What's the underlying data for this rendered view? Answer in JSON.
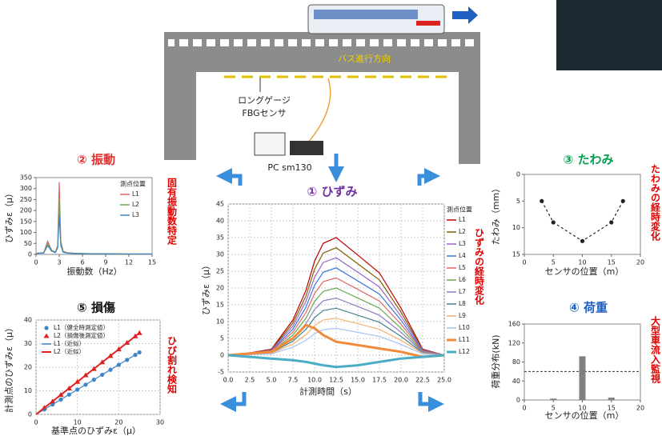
{
  "diagram": {
    "bus_direction": "バス進行方向",
    "sensor_label": [
      "ロングゲージ",
      "FBGセンサ"
    ],
    "pc_label": "PC sm130"
  },
  "chart_data": [
    {
      "type": "line",
      "title": "① ひずみ",
      "title_color": "#7030a0",
      "note": "ひずみの経時変化",
      "x_label": "計測時間（s）",
      "y_label": "ひずみε（μ）",
      "xlim": [
        0,
        25
      ],
      "ylim": [
        -5,
        45
      ],
      "xticks": [
        {
          "value": 0,
          "label": "0.0"
        },
        {
          "value": 2.5,
          "label": "2.5"
        },
        {
          "value": 5,
          "label": "5.0"
        },
        {
          "value": 7.5,
          "label": "7.5"
        },
        {
          "value": 10,
          "label": "10.0"
        },
        {
          "value": 12.5,
          "label": "12.5"
        },
        {
          "value": 15,
          "label": "15.0"
        },
        {
          "value": 17.5,
          "label": "17.5"
        },
        {
          "value": 20,
          "label": "20.0"
        },
        {
          "value": 22.5,
          "label": "22.5"
        },
        {
          "value": 25,
          "label": "25.0"
        }
      ],
      "yticks": [
        -5,
        0,
        5,
        10,
        15,
        20,
        25,
        30,
        35,
        40,
        45
      ],
      "grid": true,
      "legend": "right",
      "legend_title": "測点位置",
      "x": [
        0,
        2.5,
        5,
        7.5,
        9,
        10,
        11,
        12.5,
        15,
        17.5,
        20,
        22.5,
        25
      ],
      "series": [
        {
          "name": "L1",
          "color": "#c00000",
          "values": [
            0,
            0.7,
            1.8,
            10.5,
            19.3,
            28,
            33.3,
            35,
            29.8,
            24.5,
            14,
            1.8,
            0
          ]
        },
        {
          "name": "L2",
          "color": "#7f6000",
          "values": [
            0,
            0.6,
            1.6,
            9.6,
            17.6,
            25.6,
            30.4,
            32,
            27.2,
            22.4,
            12.8,
            1.6,
            0
          ]
        },
        {
          "name": "L3",
          "color": "#9966cc",
          "values": [
            0,
            0.6,
            1.5,
            8.7,
            16,
            23.2,
            27.6,
            29,
            24.7,
            20.3,
            11.6,
            1.5,
            0
          ]
        },
        {
          "name": "L4",
          "color": "#3c78d8",
          "values": [
            0,
            0.5,
            1.3,
            7.8,
            14.3,
            20.8,
            24.7,
            26,
            22.1,
            18.2,
            10.4,
            1.3,
            0
          ]
        },
        {
          "name": "L5",
          "color": "#e06666",
          "values": [
            0,
            0.5,
            1.2,
            6.9,
            12.7,
            18.4,
            21.9,
            23,
            19.6,
            16.1,
            9.2,
            1.2,
            0
          ]
        },
        {
          "name": "L6",
          "color": "#6aa84f",
          "values": [
            0,
            0.4,
            1,
            6,
            11,
            16,
            19,
            20,
            17,
            14,
            8,
            1,
            0
          ]
        },
        {
          "name": "L7",
          "color": "#8e7cc3",
          "values": [
            0,
            0.3,
            0.9,
            5.1,
            9.4,
            13.6,
            16.2,
            17,
            14.5,
            11.9,
            6.8,
            0.9,
            0
          ]
        },
        {
          "name": "L8",
          "color": "#45818e",
          "values": [
            0,
            0.3,
            0.7,
            4.2,
            7.7,
            11.2,
            13.3,
            14,
            11.9,
            9.8,
            5.6,
            0.7,
            0
          ]
        },
        {
          "name": "L9",
          "color": "#f6b26b",
          "values": [
            0,
            0.2,
            0.6,
            3.3,
            6.1,
            8.8,
            10.5,
            11,
            9.4,
            7.7,
            4.4,
            0.6,
            0
          ]
        },
        {
          "name": "L10",
          "color": "#a4c2f4",
          "values": [
            0,
            0.2,
            0.4,
            2.4,
            4.4,
            6.4,
            7.6,
            8,
            6.8,
            5.6,
            3.2,
            0.4,
            0
          ]
        },
        {
          "name": "L11",
          "color": "#f08a3c",
          "width": 3,
          "values": [
            0,
            0.5,
            1,
            5,
            9,
            8,
            6,
            4,
            3,
            2,
            1,
            -0.5,
            0
          ]
        },
        {
          "name": "L12",
          "color": "#4bacc6",
          "width": 3,
          "values": [
            0,
            -0.5,
            -1,
            -1.5,
            -2,
            -2.5,
            -3,
            -3.5,
            -3,
            -2,
            -1,
            -0.5,
            0
          ]
        }
      ]
    },
    {
      "type": "line",
      "title": "② 振動",
      "title_color": "#e03030",
      "note": "固有振動数特定",
      "x_label": "振動数（Hz）",
      "y_label": "ひずみε（μ）",
      "xlim": [
        0,
        15
      ],
      "ylim": [
        0,
        350
      ],
      "xticks": [
        0,
        3,
        6,
        9,
        12,
        15
      ],
      "yticks": [
        0,
        50,
        100,
        150,
        200,
        250,
        300,
        350
      ],
      "grid": false,
      "legend": "upper right",
      "legend_title": "測点位置",
      "x": [
        0,
        1,
        1.5,
        2,
        2.5,
        2.8,
        3,
        3.2,
        3.5,
        4,
        5,
        6,
        8,
        10,
        12,
        15
      ],
      "series": [
        {
          "name": "L1",
          "color": "#e06666",
          "values": [
            5,
            8,
            60,
            20,
            10,
            40,
            330,
            60,
            15,
            8,
            5,
            4,
            3,
            3,
            2,
            2
          ]
        },
        {
          "name": "L2",
          "color": "#6aa84f",
          "values": [
            5,
            7,
            50,
            18,
            9,
            35,
            250,
            50,
            12,
            7,
            5,
            4,
            3,
            3,
            2,
            2
          ]
        },
        {
          "name": "L3",
          "color": "#3d85c6",
          "values": [
            4,
            6,
            40,
            15,
            8,
            30,
            180,
            40,
            10,
            6,
            4,
            3,
            3,
            2,
            2,
            2
          ]
        }
      ]
    },
    {
      "type": "line",
      "title": "③ たわみ",
      "title_color": "#00a050",
      "note": "たわみの経時変化",
      "x_label": "センサの位置（m）",
      "y_label": "たわみ（mm）",
      "xlim": [
        0,
        20
      ],
      "ylim": [
        0,
        15
      ],
      "y_reversed": true,
      "xticks": [
        0,
        5,
        10,
        15,
        20
      ],
      "yticks": [
        0,
        5,
        10,
        15
      ],
      "grid": false,
      "x": [
        3,
        5,
        10,
        15,
        17
      ],
      "series": [
        {
          "color": "#222222",
          "dashed": true,
          "marker": "circle",
          "values": [
            5,
            9,
            12.5,
            9,
            5
          ]
        }
      ]
    },
    {
      "type": "bar",
      "title": "④ 荷重",
      "title_color": "#1f5fbf",
      "note": "大型車流入監視",
      "x_label": "センサの位置（m）",
      "y_label": "荷重分布(kN)",
      "xlim": [
        0,
        20
      ],
      "ylim": [
        0,
        160
      ],
      "xticks": [
        0,
        5,
        10,
        15,
        20
      ],
      "yticks": [
        0,
        40,
        80,
        120,
        160
      ],
      "grid": false,
      "threshold": 60,
      "color": "#808080",
      "x": [
        5,
        10,
        15
      ],
      "values": [
        3,
        92,
        5
      ]
    },
    {
      "type": "scatter",
      "title": "⑤ 損傷",
      "title_color": "#111111",
      "note": "ひび割れ検知",
      "x_label": "基準点のひずみε（μ）",
      "y_label": "計測点のひずみε（μ）",
      "xlim": [
        0,
        30
      ],
      "ylim": [
        0,
        40
      ],
      "xticks": [
        0,
        10,
        20,
        30
      ],
      "yticks": [
        0,
        10,
        20,
        30,
        40
      ],
      "grid": true,
      "legend": "upper left",
      "series": [
        {
          "name": "L1（健全時測定値）",
          "color": "#3d85c6",
          "marker": "circle",
          "line": false,
          "x": [
            2,
            4,
            6,
            8,
            10,
            12,
            14,
            16,
            18,
            20,
            22,
            24,
            25
          ],
          "values": [
            2.1,
            4.2,
            6.3,
            8.4,
            10.5,
            12.6,
            14.7,
            16.8,
            18.9,
            21,
            23.1,
            25.2,
            26.3
          ]
        },
        {
          "name": "L2（損傷後測定値）",
          "color": "#e02020",
          "marker": "triangle",
          "line": false,
          "x": [
            2,
            4,
            6,
            8,
            10,
            12,
            14,
            16,
            18,
            20,
            22,
            24,
            25
          ],
          "values": [
            2.8,
            5.5,
            8.3,
            11,
            13.8,
            16.6,
            19.3,
            22.1,
            24.8,
            27.6,
            30.4,
            33.1,
            34.5
          ]
        },
        {
          "name": "L1（近似）",
          "color": "#3d85c6",
          "x": [
            0,
            25
          ],
          "values": [
            0,
            26.3
          ]
        },
        {
          "name": "L2（近似）",
          "color": "#e02020",
          "width": 2,
          "x": [
            0,
            25
          ],
          "values": [
            0,
            34.5
          ]
        }
      ]
    }
  ]
}
